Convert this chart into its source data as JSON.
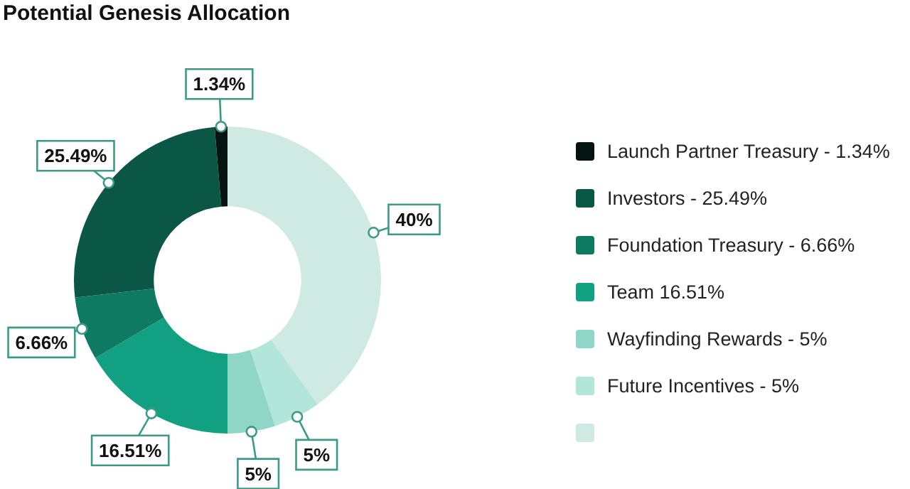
{
  "chart_data": {
    "type": "donut",
    "title": "Potential Genesis Allocation",
    "categories": [
      "Launch Partner Treasury - 1.34%",
      "Investors - 25.49%",
      "Foundation Treasury - 6.66%",
      "Team 16.51%",
      "Wayfinding Rewards - 5%",
      "Future Incentives - 5%",
      null
    ],
    "values": [
      1.34,
      25.49,
      6.66,
      16.51,
      5,
      5,
      40
    ],
    "value_labels": [
      "1.34%",
      "25.49%",
      "6.66%",
      "16.51%",
      "5%",
      "5%",
      "40%"
    ],
    "colors": [
      "#041410",
      "#0b5746",
      "#0f7a62",
      "#12a083",
      "#8fd6c6",
      "#b3e6db",
      "#cfeae3"
    ],
    "legend": "right"
  }
}
